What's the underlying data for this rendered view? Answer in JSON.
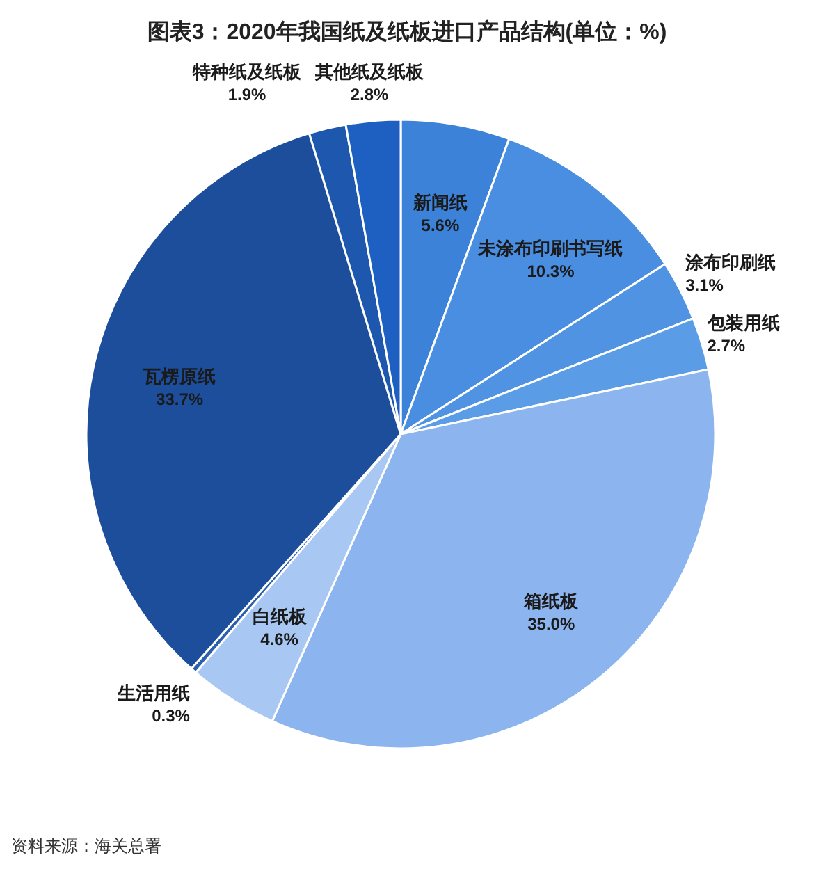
{
  "chart_data": {
    "type": "pie",
    "title": "图表3：2020年我国纸及纸板进口产品结构(单位：%)",
    "categories": [
      "新闻纸",
      "未涂布印刷书写纸",
      "涂布印刷纸",
      "包装用纸",
      "箱纸板",
      "白纸板",
      "生活用纸",
      "瓦楞原纸",
      "特种纸及纸板",
      "其他纸及纸板"
    ],
    "values": [
      5.6,
      10.3,
      3.1,
      2.7,
      35.0,
      4.6,
      0.3,
      33.7,
      1.9,
      2.8
    ],
    "value_labels": [
      "5.6%",
      "10.3%",
      "3.1%",
      "2.7%",
      "35.0%",
      "4.6%",
      "0.3%",
      "33.7%",
      "1.9%",
      "2.8%"
    ],
    "colors": [
      "#3b82d8",
      "#4a8ee2",
      "#4f93e2",
      "#5a9ce6",
      "#8cb4ee",
      "#a8c7f2",
      "#2c5fae",
      "#1c4e9c",
      "#1d57ae",
      "#1e5fc2"
    ],
    "annotations": [
      "资料来源：海关总署"
    ]
  }
}
